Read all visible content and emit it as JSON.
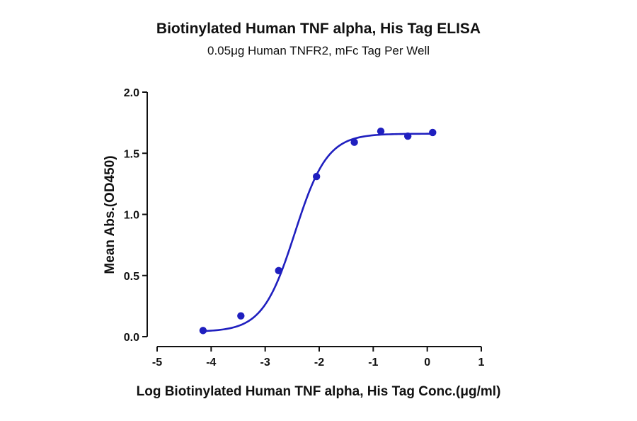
{
  "chart_data": {
    "type": "scatter",
    "title": "Biotinylated Human TNF alpha, His Tag ELISA",
    "subtitle": "0.05μg Human TNFR2, mFc Tag Per Well",
    "xlabel": "Log Biotinylated Human TNF alpha, His Tag Conc.(μg/ml)",
    "ylabel": "Mean Abs.(OD450)",
    "xlim": [
      -5,
      1
    ],
    "ylim": [
      0,
      2
    ],
    "x_ticks": [
      "-5",
      "-4",
      "-3",
      "-2",
      "-1",
      "0",
      "1"
    ],
    "y_ticks": [
      "0.0",
      "0.5",
      "1.0",
      "1.5",
      "2.0"
    ],
    "grid": false,
    "series": [
      {
        "color": "#1f1fbf",
        "points": [
          {
            "x": -4.15,
            "y": 0.05
          },
          {
            "x": -3.45,
            "y": 0.17
          },
          {
            "x": -2.75,
            "y": 0.54
          },
          {
            "x": -2.05,
            "y": 1.31
          },
          {
            "x": -1.35,
            "y": 1.59
          },
          {
            "x": -0.86,
            "y": 1.68
          },
          {
            "x": -0.36,
            "y": 1.64
          },
          {
            "x": 0.1,
            "y": 1.67
          }
        ],
        "fit": {
          "bottom": 0.04,
          "top": 1.66,
          "log_ec50": -2.45,
          "hill": 1.45,
          "x_range": [
            -4.15,
            0.1
          ]
        }
      }
    ]
  }
}
